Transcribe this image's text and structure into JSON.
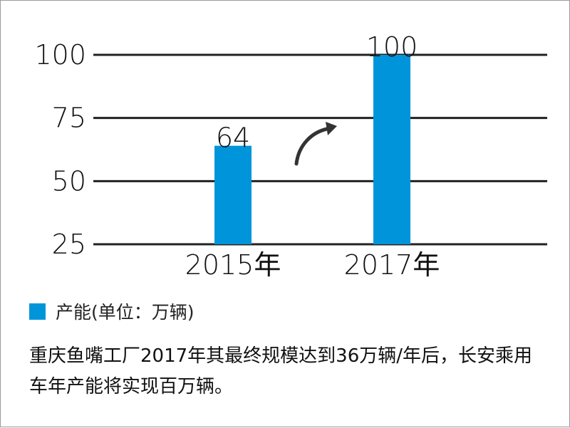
{
  "chart_data": {
    "type": "bar",
    "categories": [
      "2015年",
      "2017年"
    ],
    "values": [
      64,
      100
    ],
    "data_labels": [
      "64",
      "100"
    ],
    "yticks": [
      25,
      50,
      75,
      100
    ],
    "ylim": [
      25,
      100
    ],
    "grid": true,
    "legend": {
      "label": "产能(单位：万辆)",
      "position": "bottom-left"
    },
    "annotation": {
      "type": "curved-arrow",
      "from": "2015年",
      "to": "2017年"
    },
    "bar_color": "#0095DA",
    "grid_color": "#222222"
  },
  "caption": {
    "text": "重庆鱼嘴工厂2017年其最终规模达到36万辆/年后，长安乘用车年产能将实现百万辆。"
  }
}
